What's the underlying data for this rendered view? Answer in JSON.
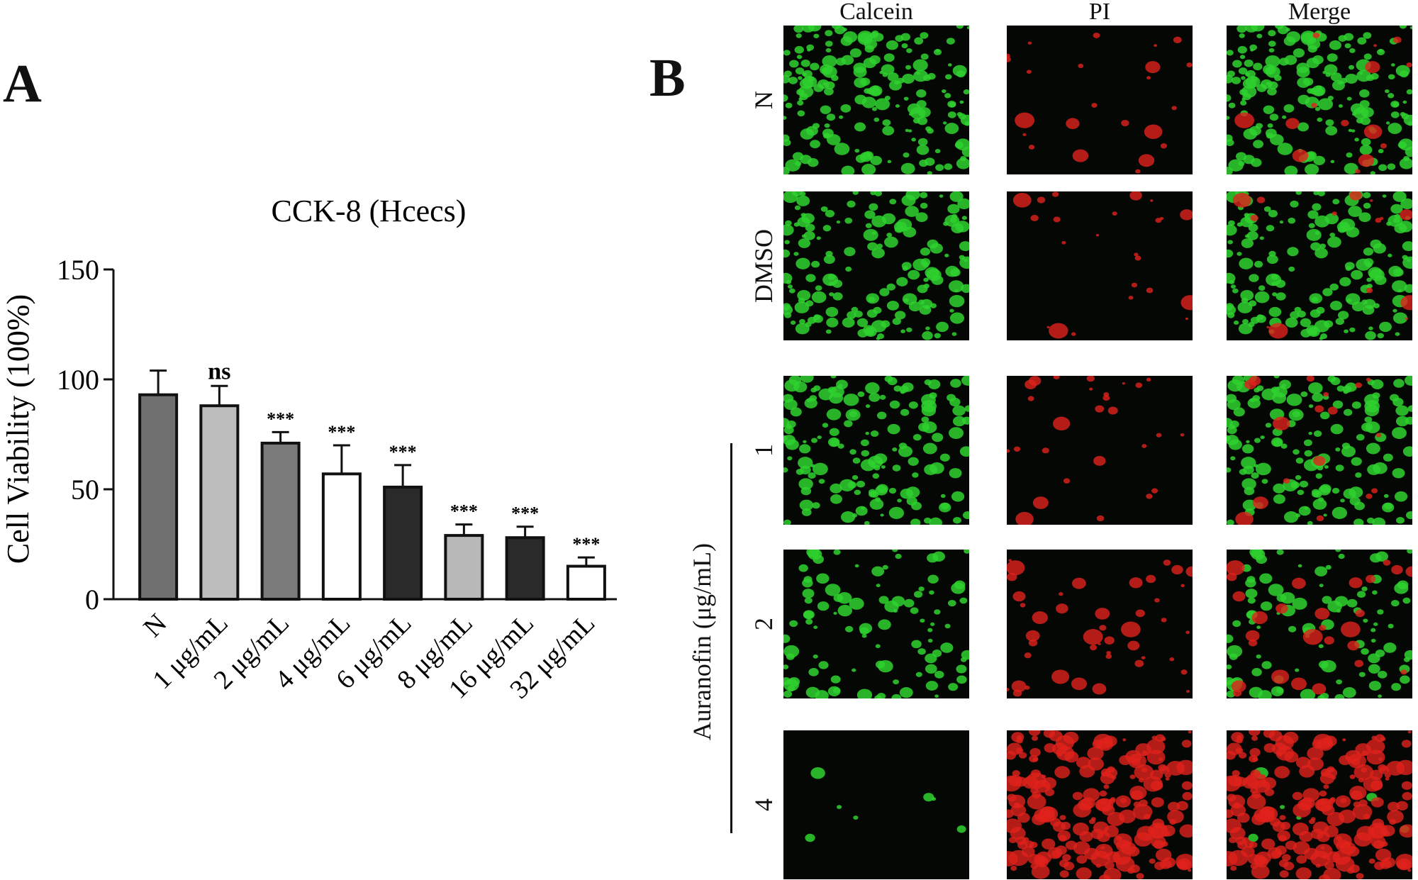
{
  "panels": {
    "a_letter": "A",
    "b_letter": "B"
  },
  "chart_data": {
    "type": "bar",
    "title": "CCK-8 (Hcecs)",
    "xlabel": "",
    "ylabel": "Cell Viability (100%)",
    "ylim": [
      0,
      150
    ],
    "yticks": [
      0,
      50,
      100,
      150
    ],
    "categories": [
      "N",
      "1 μg/mL",
      "2 μg/mL",
      "4 μg/mL",
      "6 μg/mL",
      "8 μg/mL",
      "16 μg/mL",
      "32 μg/mL"
    ],
    "values": [
      93,
      88,
      71,
      57,
      51,
      29,
      28,
      15
    ],
    "errors": [
      11,
      9,
      5,
      13,
      10,
      5,
      5,
      4
    ],
    "significance": [
      "",
      "ns",
      "***",
      "***",
      "***",
      "***",
      "***",
      "***"
    ],
    "bar_colors": [
      "#6f6f6f",
      "#bdbdbd",
      "#7a7a7a",
      "#ffffff",
      "#2a2a2a",
      "#b8b8b8",
      "#2a2a2a",
      "#ffffff"
    ],
    "grid": false,
    "legend": "none"
  },
  "microscopy": {
    "columns": [
      "Calcein",
      "PI",
      "Merge"
    ],
    "rows": [
      "N",
      "DMSO",
      "1",
      "2",
      "4"
    ],
    "group_label": "Auranofin (μg/mL)",
    "stain_colors": {
      "calcein": "#2fd12f",
      "pi": "#e0221c",
      "background": "#050705"
    },
    "live_density": [
      0.85,
      0.75,
      0.7,
      0.45,
      0.03
    ],
    "dead_density": [
      0.05,
      0.04,
      0.05,
      0.12,
      0.85
    ]
  }
}
